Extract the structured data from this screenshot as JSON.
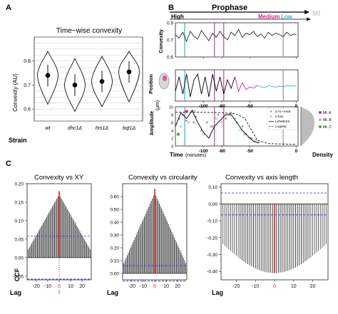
{
  "panel_labels": {
    "a": "A",
    "b": "B",
    "c": "C"
  },
  "chart_data": [
    {
      "id": "A",
      "type": "violin",
      "title": "Time−wise convexity",
      "ylabel": "Convexity (AU)",
      "xlabel": "Strain",
      "ylim": [
        0.55,
        0.9
      ],
      "yticks": [
        0.6,
        0.7,
        0.8
      ],
      "grid": true,
      "categories": [
        "wt",
        "dhc1Δ",
        "hrs1Δ",
        "bqt1Δ"
      ],
      "series": [
        {
          "values": [
            0.74,
            0.7,
            0.715,
            0.755
          ]
        }
      ],
      "ranges": [
        [
          0.62,
          0.84
        ],
        [
          0.59,
          0.81
        ],
        [
          0.61,
          0.82
        ],
        [
          0.63,
          0.84
        ]
      ]
    },
    {
      "id": "B",
      "type": "line",
      "stage_label": "Prophase",
      "stage_next": "MI",
      "phases": [
        "High",
        "Medium",
        "Low"
      ],
      "phase_colors": {
        "high": "#000000",
        "medium": "#e0208a",
        "low": "#22b8d8"
      },
      "vlines_x": [
        -120,
        -88,
        -78,
        -14
      ],
      "vline_colors": [
        "#22b8d8",
        "#c040b0",
        "#c040b0",
        "#999999"
      ],
      "xticks": [
        -100,
        -80,
        -50,
        0
      ],
      "xlabel": "Time",
      "xunit": "(minutes)",
      "xlim": [
        -130,
        2
      ],
      "subplots": [
        {
          "ylabel": "Convexity",
          "ylim": [
            0.5,
            0.9
          ],
          "yticks": [
            0.5,
            0.7,
            0.9
          ],
          "x": [
            -130,
            -126,
            -122,
            -118,
            -114,
            -110,
            -106,
            -102,
            -98,
            -94,
            -90,
            -86,
            -82,
            -78,
            -74,
            -70,
            -66,
            -62,
            -58,
            -54,
            -50,
            -46,
            -42,
            -38,
            -34,
            -30,
            -26,
            -22,
            -18,
            -14,
            -10,
            -6,
            -2,
            0
          ],
          "y": [
            0.76,
            0.72,
            0.79,
            0.68,
            0.8,
            0.74,
            0.71,
            0.81,
            0.75,
            0.69,
            0.78,
            0.73,
            0.8,
            0.74,
            0.7,
            0.79,
            0.75,
            0.82,
            0.73,
            0.78,
            0.76,
            0.8,
            0.74,
            0.77,
            0.72,
            0.79,
            0.75,
            0.78,
            0.76,
            0.74,
            0.79,
            0.75,
            0.77,
            0.76
          ]
        },
        {
          "ylabel": "Position",
          "x": [
            -130,
            -126,
            -122,
            -118,
            -114,
            -110,
            -106,
            -102,
            -98,
            -94,
            -90,
            -86,
            -82,
            -78,
            -74,
            -70,
            -66,
            -62,
            -58,
            -54,
            -50,
            -46,
            -42,
            -38,
            -34,
            -30,
            -26,
            -22,
            -18,
            -14,
            -10,
            -6,
            -2,
            0
          ],
          "y": [
            0.3,
            0.8,
            0.2,
            0.9,
            0.1,
            0.7,
            0.9,
            0.2,
            0.8,
            0.1,
            0.9,
            0.3,
            0.8,
            0.2,
            0.7,
            0.4,
            0.8,
            0.3,
            0.6,
            0.35,
            0.45,
            0.4,
            0.5,
            0.45,
            0.42,
            0.5,
            0.46,
            0.44,
            0.48,
            0.45,
            0.5,
            0.47,
            0.49,
            0.48
          ],
          "segment_colors": [
            "#000000",
            "#e0208a",
            "#22b8d8"
          ],
          "segment_breaks_x": [
            -62,
            -40
          ]
        },
        {
          "ylabel": "Amplitude",
          "yunit": "(μm)",
          "ylim": [
            0,
            10
          ],
          "yticks": [
            0,
            2,
            4,
            6,
            8,
            10
          ],
          "high_points": {
            "x": [
              -126,
              -122,
              -118,
              -112,
              -108,
              -102,
              -96,
              -90,
              -84,
              -76,
              -70,
              -64,
              -58,
              -54,
              -48
            ],
            "y": [
              7,
              8,
              6.5,
              9,
              7.5,
              4,
              6,
              5,
              8,
              7,
              8.5,
              6,
              5,
              3,
              2
            ]
          },
          "low_points": {
            "x": [
              -124,
              -116,
              -110,
              -100,
              -92,
              -86,
              -80,
              -72,
              -66,
              -60,
              -56,
              -50,
              -44,
              -40
            ],
            "y": [
              5,
              6,
              9,
              3,
              5,
              7,
              6,
              8,
              7,
              4,
              3,
              2,
              1.5,
              1
            ]
          },
          "lowess": {
            "x": [
              -130,
              -124,
              -118,
              -112,
              -106,
              -100,
              -94,
              -88,
              -82,
              -76,
              -70,
              -64,
              -58,
              -52,
              -46,
              -40
            ],
            "y": [
              5,
              8.5,
              7,
              9,
              6,
              3.5,
              2,
              5,
              6.5,
              8,
              8,
              6,
              4,
              2.5,
              1.2,
              0.8
            ]
          },
          "logistic": {
            "x": [
              -130,
              -100,
              -80,
              -65,
              -55,
              -48,
              -42,
              -30,
              0
            ],
            "y": [
              8.6,
              8.6,
              8.5,
              8.2,
              7,
              4,
              1.5,
              0.6,
              0.4
            ]
          },
          "mt_markers": [
            {
              "name": "Mt. A",
              "color": "#e0208a",
              "x": -118,
              "y": 8.8
            },
            {
              "name": "Mt. B",
              "color": "#c0c0c0",
              "x": -110,
              "y": 6
            },
            {
              "name": "Mt. C",
              "color": "#44aa33",
              "x": -127,
              "y": 3
            }
          ],
          "legend": [
            "α hi.+med.",
            "α low",
            "LOWESS",
            "Logistic"
          ]
        }
      ],
      "density_label": "Density",
      "mt_legend": [
        "Mt. A",
        "Mt. B",
        "Mt. C"
      ]
    },
    {
      "id": "C1",
      "type": "bar",
      "title": "Convexity vs XY",
      "ylabel": "CCF",
      "xlabel": "Lag",
      "ylim": [
        -0.06,
        0.2
      ],
      "yticks": [
        -0.05,
        0.0,
        0.05,
        0.1,
        0.15,
        0.2
      ],
      "xticks": [
        -20,
        -10,
        0,
        10,
        20
      ],
      "lag_range": [
        -27,
        27
      ],
      "peak": 0.18,
      "conf_bounds": [
        0.058,
        -0.058
      ],
      "zero_lag_extra": {
        "label": "1"
      }
    },
    {
      "id": "C2",
      "type": "bar",
      "title": "Convexity vs circularity",
      "xlabel": "Lag",
      "ylim": [
        -0.05,
        0.7
      ],
      "yticks": [
        0.0,
        0.1,
        0.2,
        0.3,
        0.4,
        0.5,
        0.6
      ],
      "xticks": [
        -20,
        -10,
        0,
        10,
        20
      ],
      "lag_range": [
        -27,
        27
      ],
      "peak": 0.66,
      "conf_bounds": [
        0.06,
        -0.06
      ]
    },
    {
      "id": "C3",
      "type": "bar",
      "title": "Convexity vs axis length",
      "xlabel": "Lag",
      "ylim": [
        -0.45,
        0.12
      ],
      "yticks": [
        -0.4,
        -0.3,
        -0.2,
        -0.1,
        0.0,
        0.1
      ],
      "xticks": [
        -20,
        -10,
        0,
        10,
        20
      ],
      "lag_range": [
        -27,
        27
      ],
      "trough": -0.41,
      "conf_bounds": [
        0.065,
        -0.065
      ]
    }
  ]
}
